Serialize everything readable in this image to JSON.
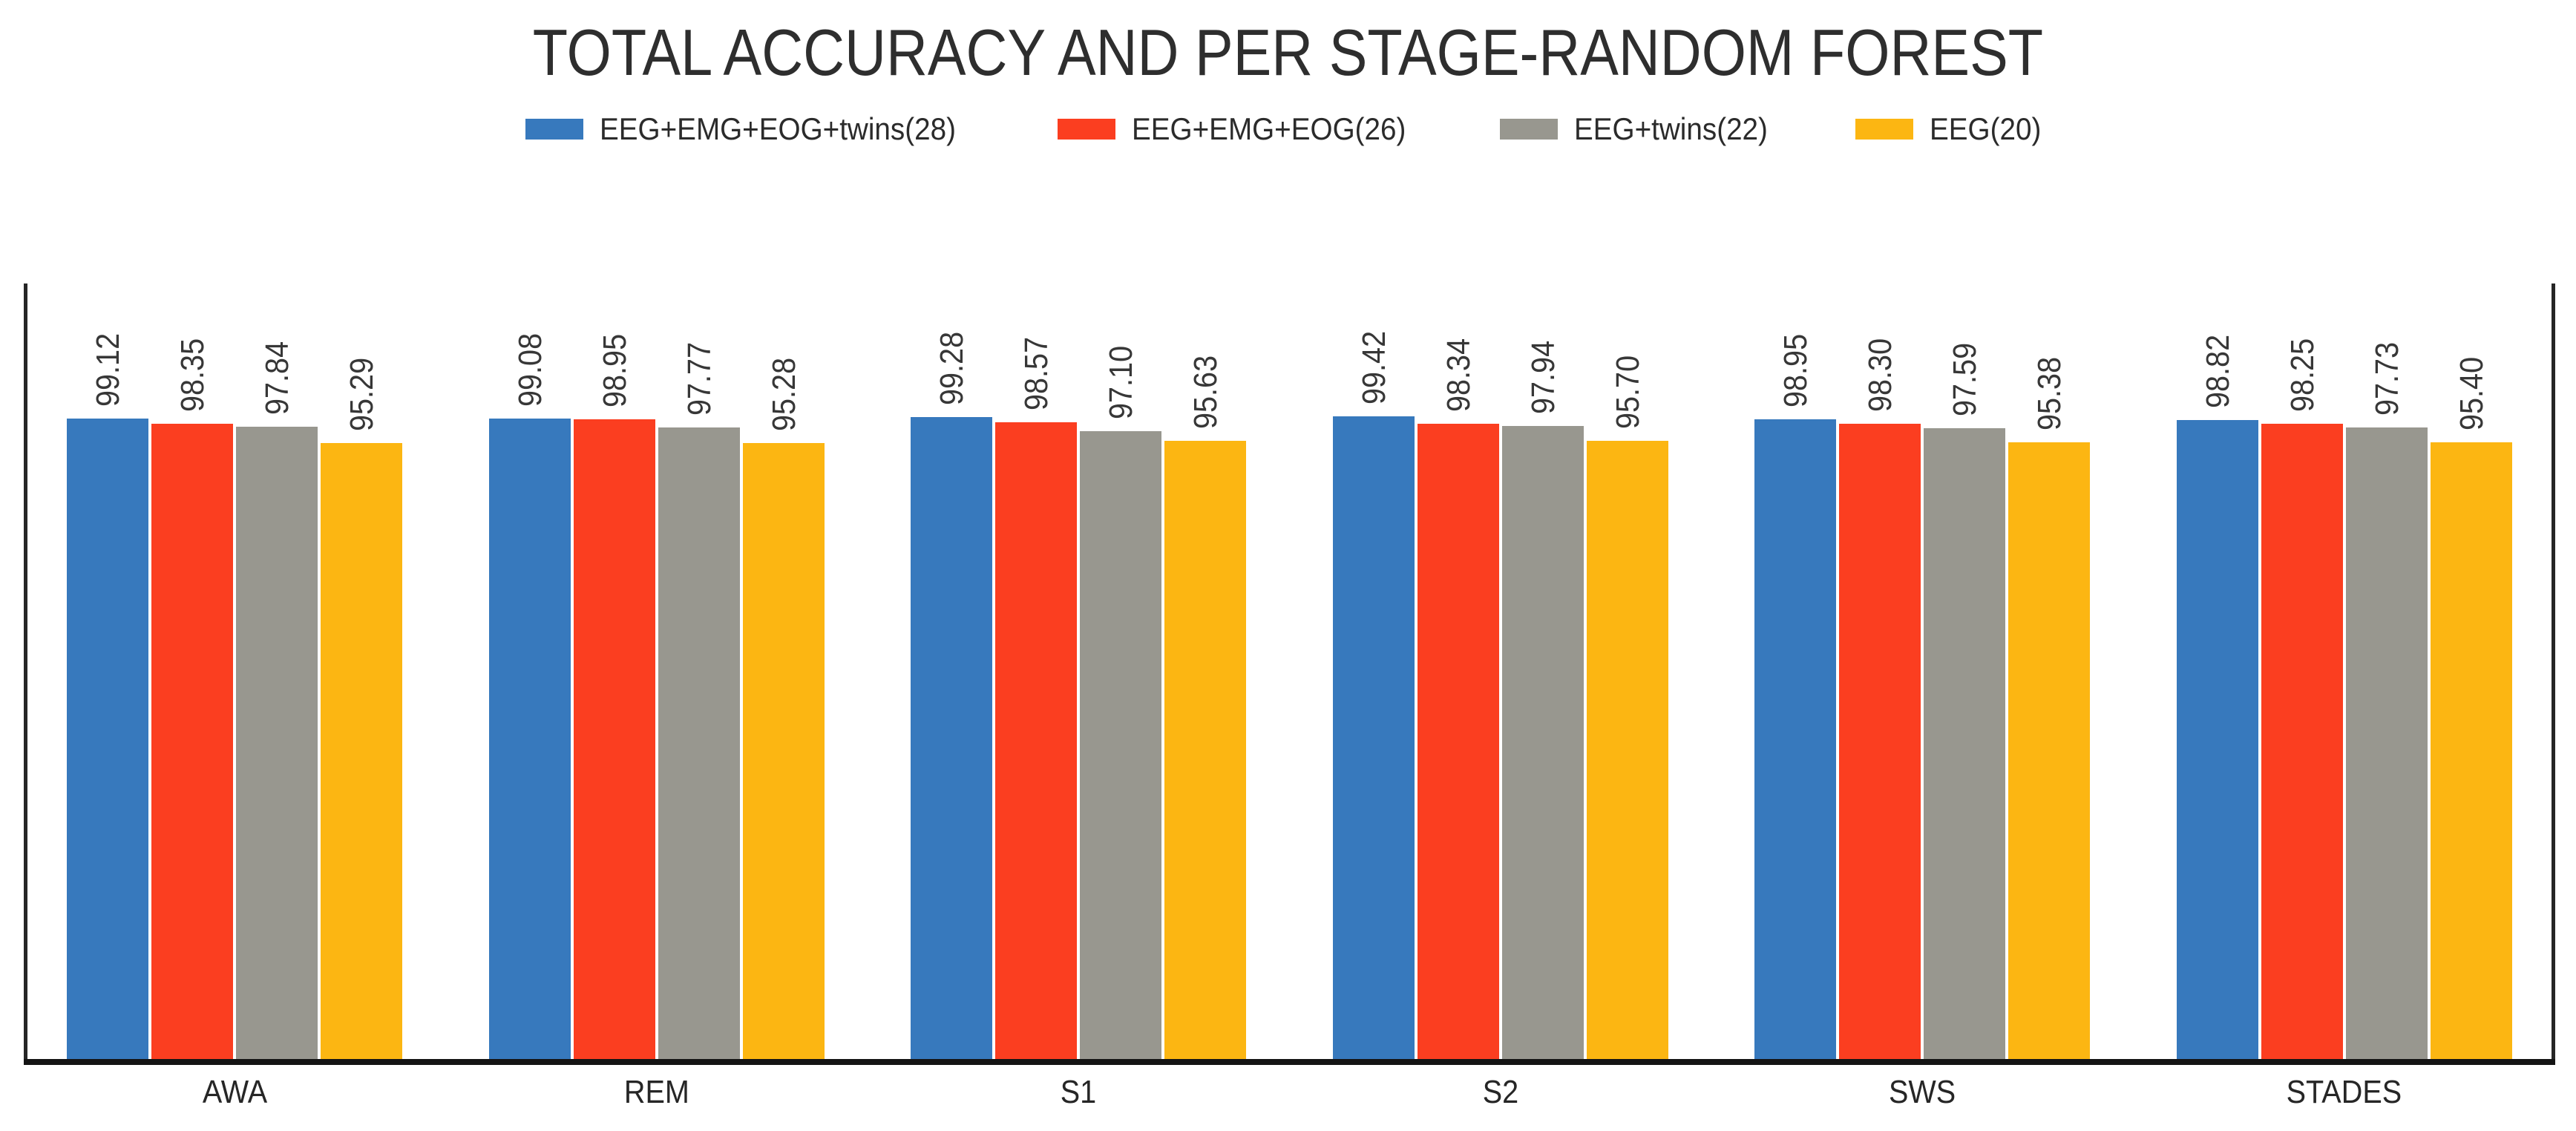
{
  "chart_data": {
    "type": "bar",
    "title": "TOTAL ACCURACY AND PER STAGE-RANDOM FOREST",
    "categories": [
      "AWA",
      "REM",
      "S1",
      "S2",
      "SWS",
      "STADES"
    ],
    "series": [
      {
        "name": "EEG+EMG+EOG+twins(28)",
        "color": "#3779BD",
        "values": [
          99.12,
          99.08,
          99.28,
          99.42,
          98.95,
          98.82
        ]
      },
      {
        "name": "EEG+EMG+EOG(26)",
        "color": "#FB3E20",
        "values": [
          98.35,
          98.95,
          98.57,
          98.34,
          98.3,
          98.25
        ]
      },
      {
        "name": "EEG+twins(22)",
        "color": "#98978F",
        "values": [
          97.84,
          97.77,
          97.1,
          97.94,
          97.59,
          97.73
        ]
      },
      {
        "name": "EEG(20)",
        "color": "#FCB612",
        "values": [
          95.29,
          95.28,
          95.63,
          95.7,
          95.38,
          95.4
        ]
      }
    ],
    "ylim": [
      0,
      120
    ],
    "grid": false,
    "legend_position": "top-center",
    "value_labels": "rotated-90-above-bars",
    "value_label_format": "0.00",
    "xlabel": "",
    "ylabel": ""
  }
}
